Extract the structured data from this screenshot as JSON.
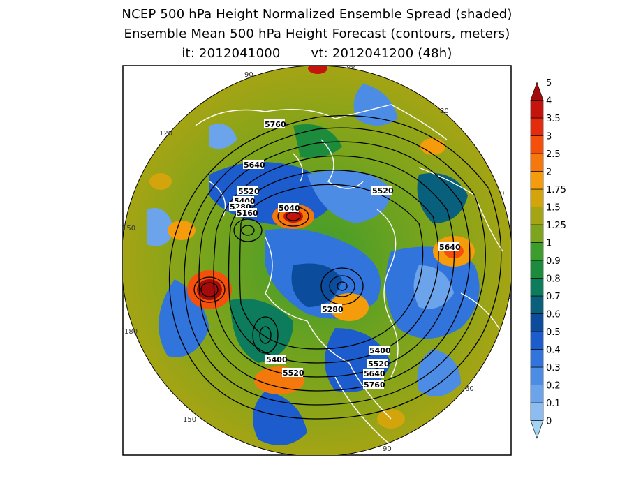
{
  "title": {
    "line1": "NCEP 500 hPa Height Normalized Ensemble Spread (shaded)",
    "line2": "Ensemble Mean 500 hPa Height Forecast (contours, meters)",
    "init": "it: 2012041000",
    "valid": "vt: 2012041200 (48h)"
  },
  "colorbar": {
    "levels": [
      "0",
      "0.1",
      "0.2",
      "0.3",
      "0.4",
      "0.5",
      "0.6",
      "0.7",
      "0.8",
      "0.9",
      "1",
      "1.25",
      "1.5",
      "1.75",
      "2",
      "2.5",
      "3",
      "3.5",
      "4",
      "5"
    ],
    "colors": [
      "#a4d4f4",
      "#8cbcf0",
      "#6ca4ec",
      "#4c8ce4",
      "#3074dc",
      "#1c5ccc",
      "#0c4c9c",
      "#08607c",
      "#0c7c5c",
      "#1c8c3c",
      "#3c9c2c",
      "#7ca41c",
      "#a4a414",
      "#d4a40c",
      "#f49c0c",
      "#f4780c",
      "#f4500c",
      "#e42c0c",
      "#c4140c",
      "#a40c0c"
    ]
  },
  "map": {
    "longitude_labels": [
      "60",
      "30",
      "0",
      "30",
      "60",
      "90",
      "120",
      "150",
      "180",
      "150",
      "120",
      "90"
    ],
    "contour_labels": [
      "5760",
      "5640",
      "5520",
      "5520",
      "5400",
      "5280",
      "5160",
      "5040",
      "5640",
      "5280",
      "5400",
      "5520",
      "5640",
      "5760",
      "5400",
      "5520"
    ]
  }
}
